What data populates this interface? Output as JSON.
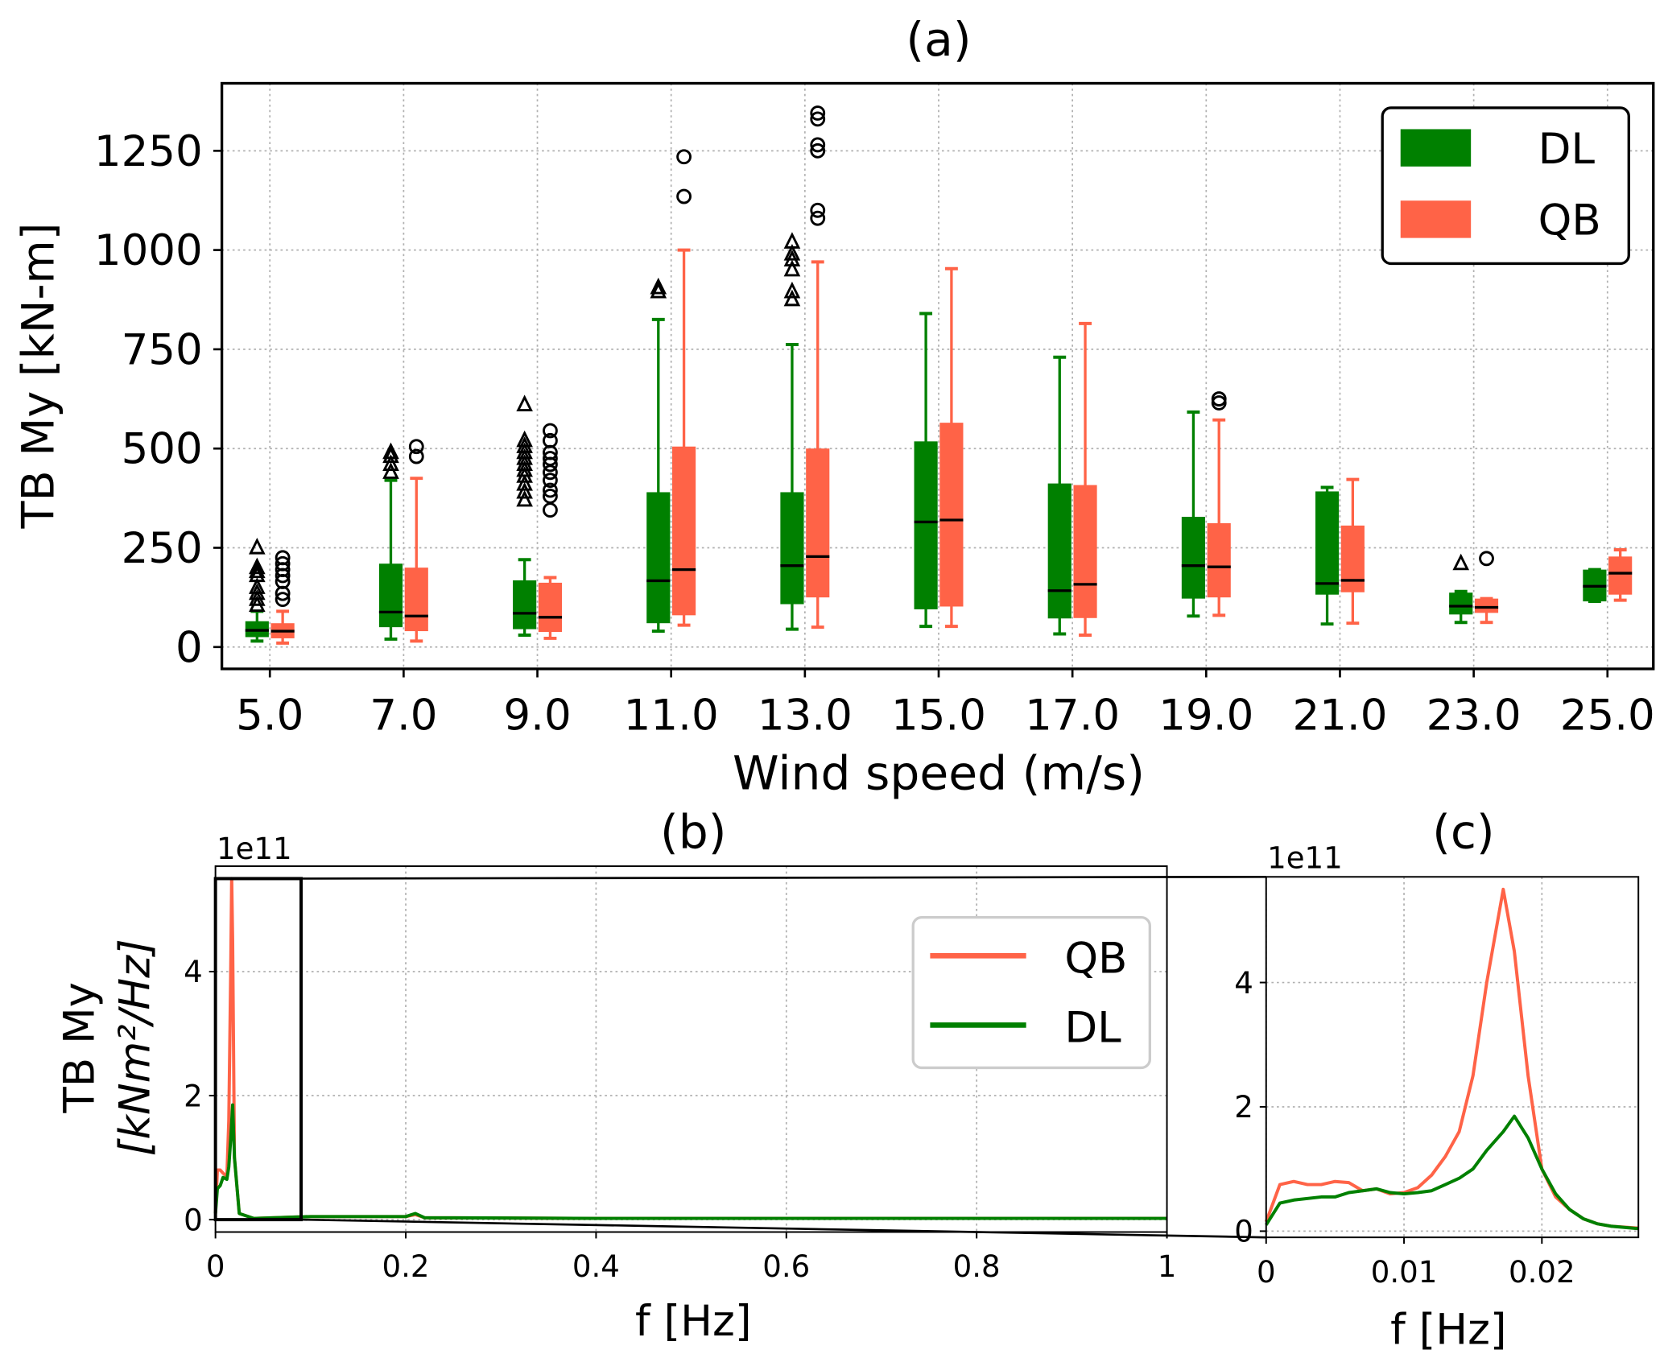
{
  "colors": {
    "DL": "#008000",
    "QB": "#ff6347"
  },
  "chart_data": [
    {
      "type": "box",
      "title": "(a)",
      "xlabel": "Wind speed (m/s)",
      "ylabel": "TB My [kN-m]",
      "categories": [
        "5.0",
        "7.0",
        "9.0",
        "11.0",
        "13.0",
        "15.0",
        "17.0",
        "19.0",
        "21.0",
        "23.0",
        "25.0"
      ],
      "yticks": [
        0,
        250,
        500,
        750,
        1000,
        1250
      ],
      "ylim": [
        -55,
        1420
      ],
      "grid": true,
      "legend": {
        "placement": "top-right",
        "entries": [
          "DL",
          "QB"
        ]
      },
      "series": [
        {
          "name": "DL",
          "flier_marker": "triangle",
          "boxes": [
            {
              "whislo": 15,
              "q1": 25,
              "med": 42,
              "q3": 65,
              "whishi": 90,
              "fliers": [
                105,
                120,
                135,
                150,
                180,
                190,
                200,
                250
              ]
            },
            {
              "whislo": 20,
              "q1": 50,
              "med": 88,
              "q3": 210,
              "whishi": 420,
              "fliers": [
                440,
                460,
                480,
                490
              ]
            },
            {
              "whislo": 30,
              "q1": 45,
              "med": 85,
              "q3": 168,
              "whishi": 220,
              "fliers": [
                370,
                390,
                410,
                430,
                445,
                460,
                475,
                490,
                505,
                520,
                610
              ]
            },
            {
              "whislo": 40,
              "q1": 60,
              "med": 167,
              "q3": 390,
              "whishi": 825,
              "fliers": [
                895,
                905
              ]
            },
            {
              "whislo": 45,
              "q1": 108,
              "med": 205,
              "q3": 390,
              "whishi": 762,
              "fliers": [
                875,
                895,
                950,
                975,
                990,
                1020
              ]
            },
            {
              "whislo": 52,
              "q1": 95,
              "med": 315,
              "q3": 518,
              "whishi": 840,
              "fliers": []
            },
            {
              "whislo": 33,
              "q1": 72,
              "med": 142,
              "q3": 412,
              "whishi": 730,
              "fliers": []
            },
            {
              "whislo": 78,
              "q1": 122,
              "med": 205,
              "q3": 328,
              "whishi": 592,
              "fliers": []
            },
            {
              "whislo": 58,
              "q1": 132,
              "med": 160,
              "q3": 392,
              "whishi": 402,
              "fliers": []
            },
            {
              "whislo": 62,
              "q1": 82,
              "med": 103,
              "q3": 137,
              "whishi": 140,
              "fliers": [
                210
              ]
            },
            {
              "whislo": 115,
              "q1": 115,
              "med": 153,
              "q3": 195,
              "whishi": 195,
              "fliers": []
            }
          ]
        },
        {
          "name": "QB",
          "flier_marker": "circle",
          "boxes": [
            {
              "whislo": 10,
              "q1": 22,
              "med": 40,
              "q3": 60,
              "whishi": 90,
              "fliers": [
                120,
                135,
                165,
                180,
                195,
                210,
                225
              ]
            },
            {
              "whislo": 15,
              "q1": 40,
              "med": 78,
              "q3": 200,
              "whishi": 425,
              "fliers": [
                480,
                505
              ]
            },
            {
              "whislo": 22,
              "q1": 38,
              "med": 75,
              "q3": 162,
              "whishi": 175,
              "fliers": [
                345,
                380,
                395,
                420,
                440,
                460,
                475,
                490,
                520,
                545
              ]
            },
            {
              "whislo": 55,
              "q1": 80,
              "med": 195,
              "q3": 505,
              "whishi": 1000,
              "fliers": [
                1135,
                1235
              ]
            },
            {
              "whislo": 50,
              "q1": 125,
              "med": 228,
              "q3": 500,
              "whishi": 970,
              "fliers": [
                1080,
                1100,
                1250,
                1265,
                1330,
                1345
              ]
            },
            {
              "whislo": 52,
              "q1": 102,
              "med": 320,
              "q3": 565,
              "whishi": 953,
              "fliers": []
            },
            {
              "whislo": 30,
              "q1": 73,
              "med": 158,
              "q3": 408,
              "whishi": 815,
              "fliers": []
            },
            {
              "whislo": 80,
              "q1": 125,
              "med": 202,
              "q3": 312,
              "whishi": 572,
              "fliers": [
                615,
                625
              ]
            },
            {
              "whislo": 60,
              "q1": 138,
              "med": 168,
              "q3": 306,
              "whishi": 422,
              "fliers": []
            },
            {
              "whislo": 62,
              "q1": 86,
              "med": 100,
              "q3": 122,
              "whishi": 122,
              "fliers": [
                223
              ]
            },
            {
              "whislo": 118,
              "q1": 132,
              "med": 186,
              "q3": 228,
              "whishi": 245,
              "fliers": []
            }
          ]
        }
      ]
    },
    {
      "type": "line",
      "title": "(b)",
      "xlabel": "f [Hz]",
      "ylabel_line1": "TB My",
      "ylabel_line2": "[kNm²/Hz]",
      "offset_text": "1e11",
      "xticks": [
        "0",
        "0.2",
        "0.4",
        "0.6",
        "0.8",
        "1"
      ],
      "yticks": [
        "0",
        "2",
        "4"
      ],
      "xlim": [
        0,
        1
      ],
      "ylim": [
        -0.2,
        5.7
      ],
      "grid": true,
      "legend": {
        "placement": "upper-right",
        "entries": [
          "QB",
          "DL"
        ]
      },
      "zoom_box": {
        "x": [
          0,
          0.09
        ],
        "y": [
          0,
          5.5
        ]
      },
      "series": [
        {
          "name": "QB",
          "x": [
            0,
            0.002,
            0.005,
            0.008,
            0.012,
            0.014,
            0.016,
            0.017,
            0.018,
            0.02,
            0.025,
            0.04,
            0.1,
            0.2,
            0.21,
            0.22,
            0.4,
            1
          ],
          "y": [
            0.1,
            0.8,
            0.8,
            0.75,
            0.7,
            1.6,
            4.0,
            5.5,
            4.5,
            1.0,
            0.1,
            0.02,
            0.05,
            0.05,
            0.08,
            0.03,
            0.02,
            0.02
          ]
        },
        {
          "name": "DL",
          "x": [
            0,
            0.002,
            0.005,
            0.008,
            0.012,
            0.014,
            0.016,
            0.018,
            0.02,
            0.025,
            0.04,
            0.1,
            0.2,
            0.21,
            0.22,
            0.4,
            1
          ],
          "y": [
            0.1,
            0.5,
            0.55,
            0.68,
            0.65,
            0.85,
            1.3,
            1.85,
            1.0,
            0.1,
            0.02,
            0.05,
            0.05,
            0.1,
            0.03,
            0.02,
            0.02
          ]
        }
      ]
    },
    {
      "type": "line",
      "title": "(c)",
      "xlabel": "f [Hz]",
      "offset_text": "1e11",
      "xticks": [
        "0",
        "0.01",
        "0.02"
      ],
      "yticks": [
        "0",
        "2",
        "4"
      ],
      "xlim": [
        0,
        0.027
      ],
      "ylim": [
        -0.1,
        5.7
      ],
      "grid": true,
      "series": [
        {
          "name": "QB",
          "x": [
            0,
            0.001,
            0.002,
            0.003,
            0.004,
            0.005,
            0.006,
            0.007,
            0.008,
            0.009,
            0.01,
            0.011,
            0.012,
            0.013,
            0.014,
            0.015,
            0.016,
            0.0172,
            0.018,
            0.019,
            0.02,
            0.021,
            0.022,
            0.023,
            0.024,
            0.025,
            0.027
          ],
          "y": [
            0.15,
            0.75,
            0.8,
            0.75,
            0.75,
            0.8,
            0.78,
            0.65,
            0.68,
            0.6,
            0.62,
            0.7,
            0.9,
            1.2,
            1.6,
            2.5,
            4.0,
            5.5,
            4.5,
            2.5,
            1.0,
            0.55,
            0.35,
            0.2,
            0.12,
            0.08,
            0.05
          ]
        },
        {
          "name": "DL",
          "x": [
            0,
            0.001,
            0.002,
            0.004,
            0.005,
            0.006,
            0.007,
            0.008,
            0.009,
            0.01,
            0.011,
            0.012,
            0.013,
            0.014,
            0.015,
            0.016,
            0.0172,
            0.018,
            0.019,
            0.02,
            0.021,
            0.022,
            0.023,
            0.024,
            0.025,
            0.027
          ],
          "y": [
            0.1,
            0.45,
            0.5,
            0.55,
            0.55,
            0.62,
            0.65,
            0.68,
            0.62,
            0.6,
            0.62,
            0.65,
            0.75,
            0.85,
            1.0,
            1.3,
            1.6,
            1.85,
            1.5,
            1.0,
            0.6,
            0.35,
            0.2,
            0.12,
            0.08,
            0.04
          ]
        }
      ]
    }
  ]
}
